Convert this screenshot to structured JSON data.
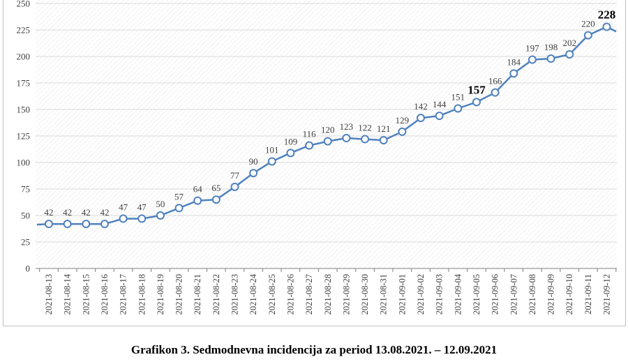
{
  "chart_data": {
    "type": "line",
    "caption": "Grafikon 3. Sedmodnevna incidencija za period 13.08.2021. – 12.09.2021",
    "categories": [
      "2021-08-13",
      "2021-08-14",
      "2021-08-15",
      "2021-08-16",
      "2021-08-17",
      "2021-08-18",
      "2021-08-19",
      "2021-08-20",
      "2021-08-21",
      "2021-08-22",
      "2021-08-23",
      "2021-08-24",
      "2021-08-25",
      "2021-08-26",
      "2021-08-27",
      "2021-08-28",
      "2021-08-29",
      "2021-08-30",
      "2021-08-31",
      "2021-09-01",
      "2021-09-02",
      "2021-09-03",
      "2021-09-04",
      "2021-09-05",
      "2021-09-06",
      "2021-09-07",
      "2021-09-08",
      "2021-09-09",
      "2021-09-10",
      "2021-09-11",
      "2021-09-12"
    ],
    "values": [
      42,
      42,
      42,
      42,
      47,
      47,
      50,
      57,
      64,
      65,
      77,
      90,
      101,
      109,
      116,
      120,
      123,
      122,
      121,
      129,
      142,
      144,
      151,
      157,
      166,
      184,
      197,
      198,
      202,
      220,
      228
    ],
    "highlighted_labels": [
      "2021-09-05",
      "2021-09-12"
    ],
    "yticks": [
      0,
      25,
      50,
      75,
      100,
      125,
      150,
      175,
      200,
      225,
      250
    ],
    "ylim": [
      0,
      250
    ],
    "grid": true,
    "legend": "none",
    "colors": {
      "line": "#4f81bd",
      "marker_fill": "#ffffff",
      "grid": "#d9d9d9",
      "axis": "#7f7f7f",
      "plot_hatch": "#ededed"
    }
  }
}
